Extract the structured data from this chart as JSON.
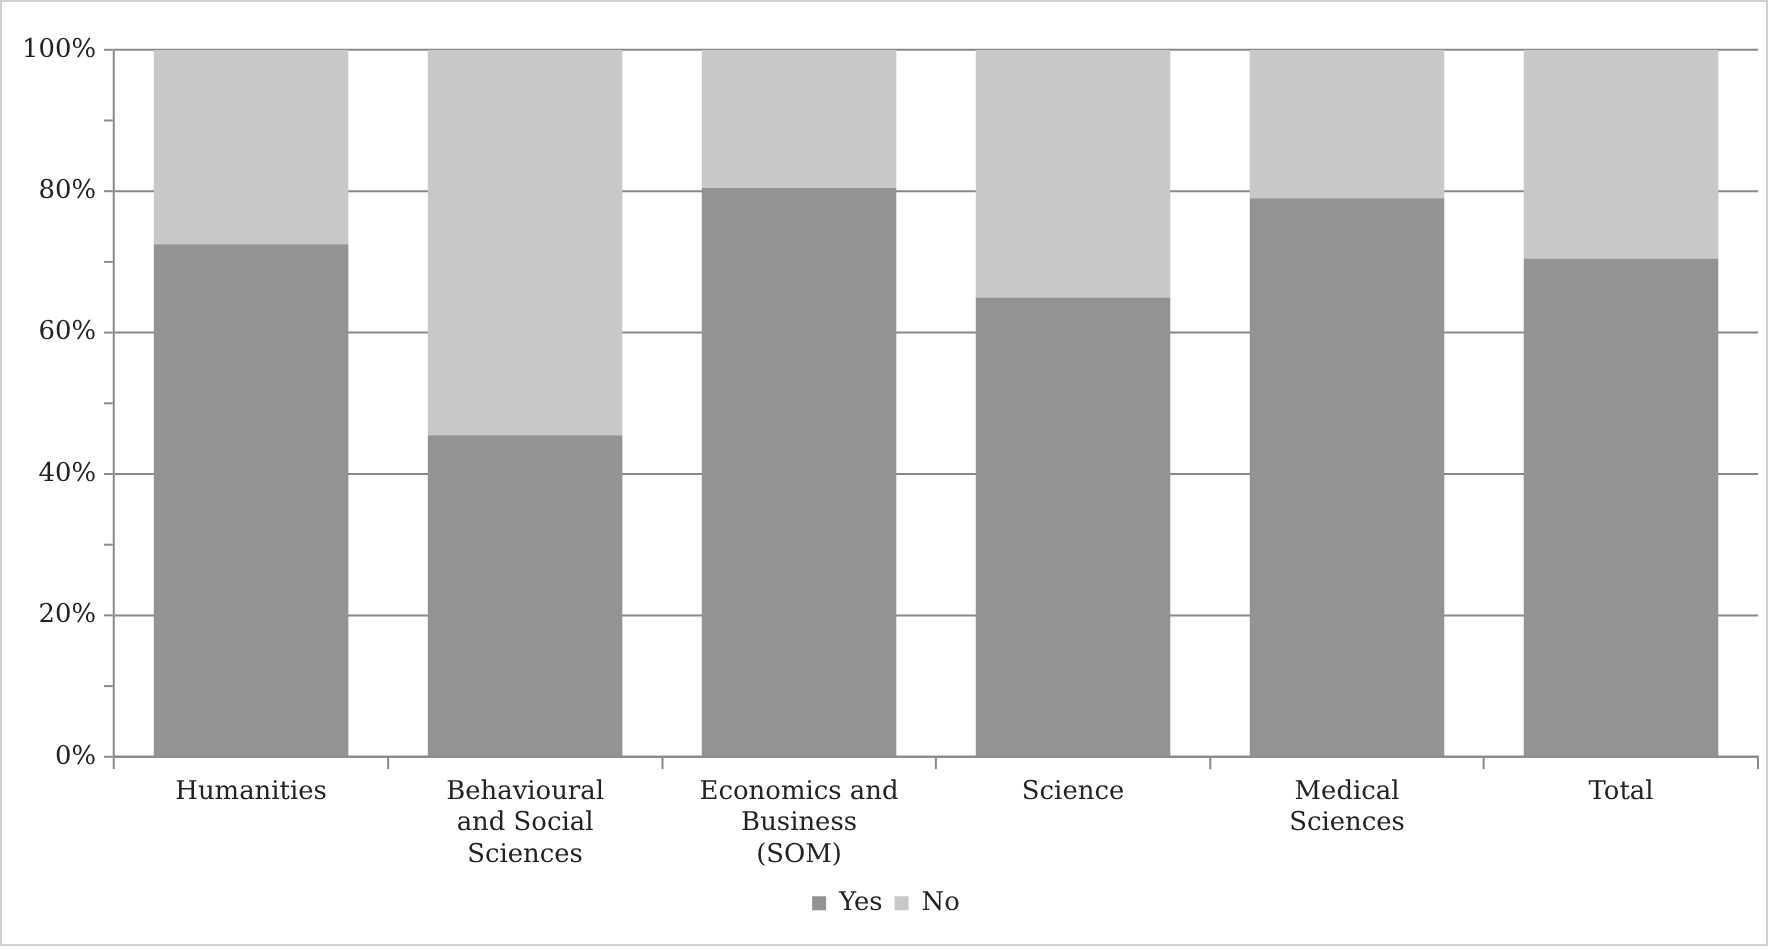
{
  "chart_data": {
    "type": "bar",
    "stacked": true,
    "categories": [
      "Humanities",
      "Behavioural and Social Sciences",
      "Economics and Business (SOM)",
      "Science",
      "Medical Sciences",
      "Total"
    ],
    "series": [
      {
        "name": "Yes",
        "color": "#939393",
        "values": [
          72.5,
          45.5,
          80.5,
          65,
          79,
          70.5
        ]
      },
      {
        "name": "No",
        "color": "#c8c8c8",
        "values": [
          27.5,
          54.5,
          19.5,
          35,
          21,
          29.5
        ]
      }
    ],
    "ylim": [
      0,
      100
    ],
    "yticks": [
      {
        "value": 0,
        "label": "0%"
      },
      {
        "value": 10,
        "label": null
      },
      {
        "value": 20,
        "label": "20%"
      },
      {
        "value": 30,
        "label": null
      },
      {
        "value": 40,
        "label": "40%"
      },
      {
        "value": 50,
        "label": null
      },
      {
        "value": 60,
        "label": "60%"
      },
      {
        "value": 70,
        "label": null
      },
      {
        "value": 80,
        "label": "80%"
      },
      {
        "value": 90,
        "label": null
      },
      {
        "value": 100,
        "label": "100%"
      }
    ],
    "grid": "y",
    "legend": "bottom"
  }
}
